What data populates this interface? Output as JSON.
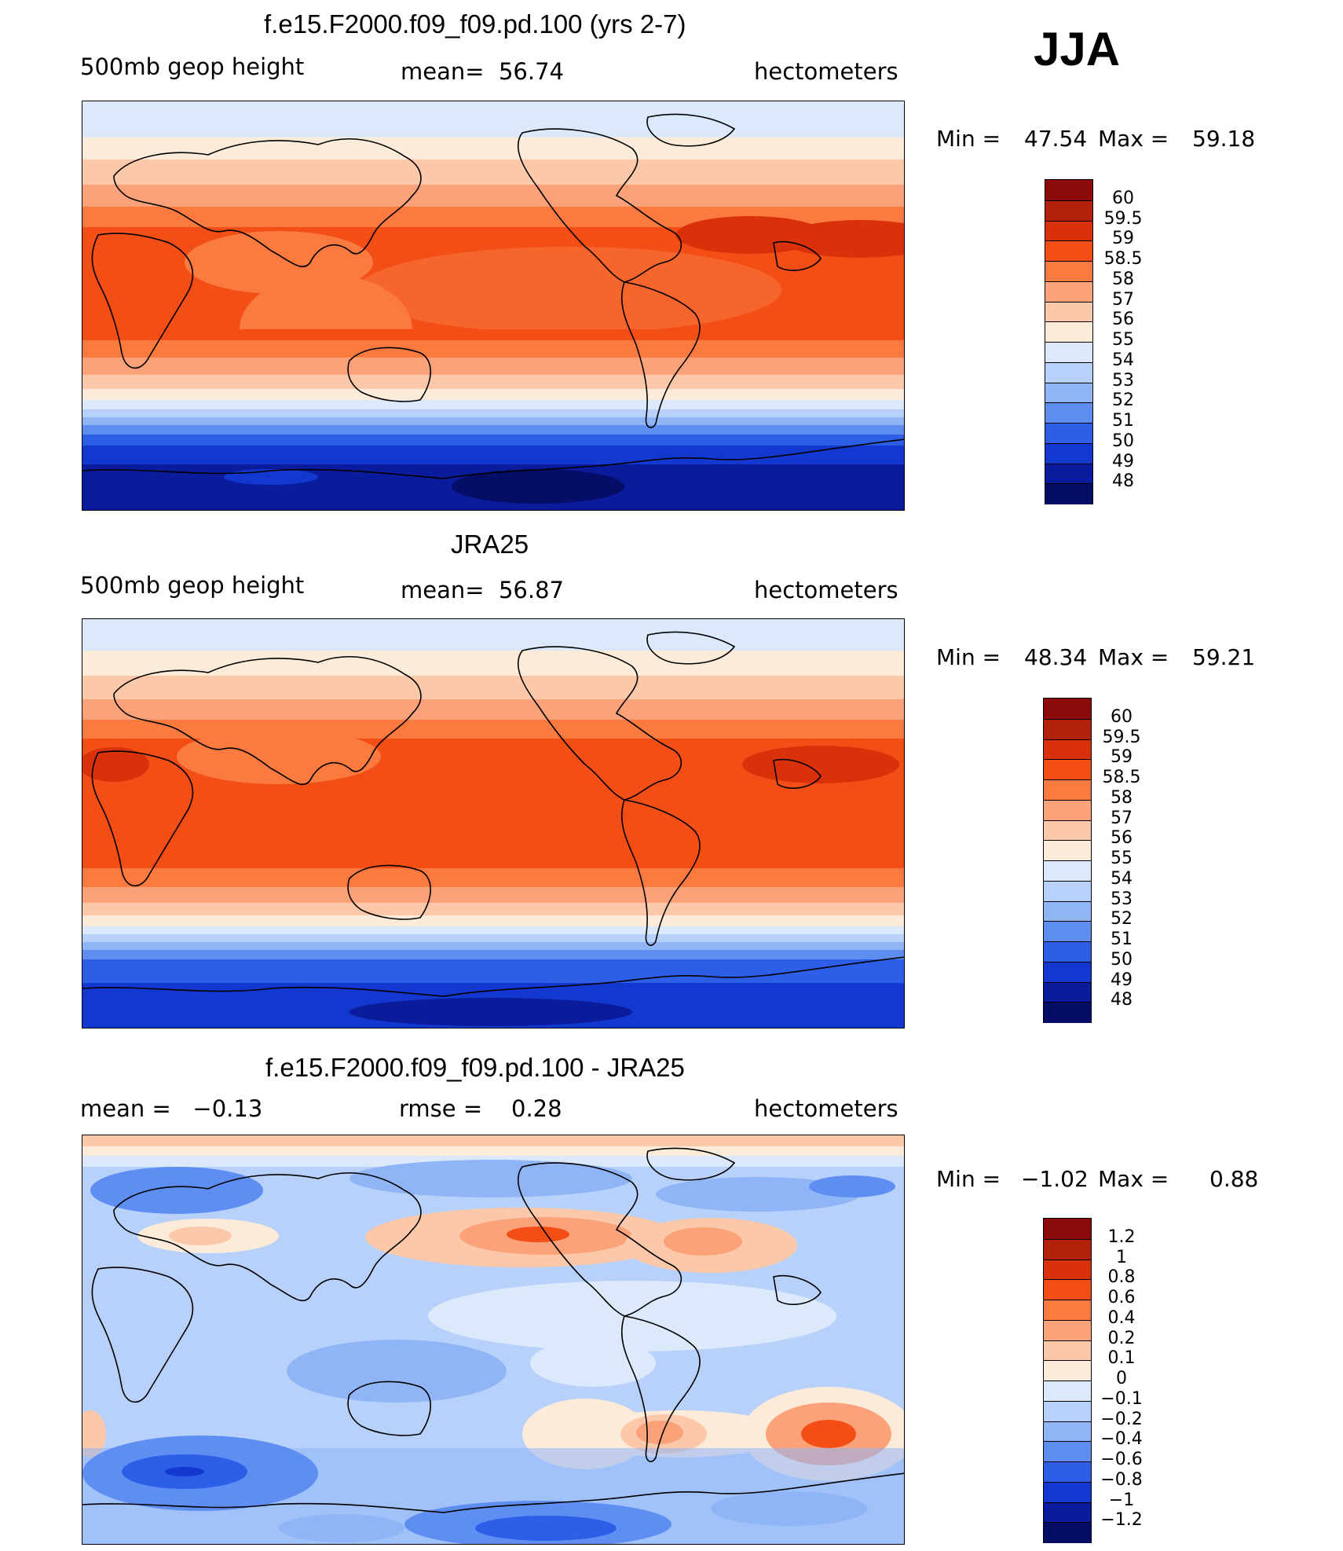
{
  "season": "JJA",
  "panels": [
    {
      "id": "model",
      "title": "f.e15.F2000.f09_f09.pd.100 (yrs 2-7)",
      "left_label": "500mb geop height",
      "center_label": "mean=  56.74",
      "units": "hectometers",
      "min_label": "Min =",
      "min_value": "47.54",
      "max_label": "Max =",
      "max_value": "59.18",
      "colorbar_levels": [
        "60",
        "59.5",
        "59",
        "58.5",
        "58",
        "57",
        "56",
        "55",
        "54",
        "53",
        "52",
        "51",
        "50",
        "49",
        "48"
      ],
      "colorbar_colors": [
        "#8b0a0a",
        "#b2220b",
        "#d9320b",
        "#f24e16",
        "#fa7a3f",
        "#fca27a",
        "#fcc8aa",
        "#fdebd9",
        "#dbe9fb",
        "#b7d1fa",
        "#8fb5f7",
        "#5f8ef2",
        "#2d5ee8",
        "#1238cf",
        "#0a1c9c",
        "#060d66"
      ]
    },
    {
      "id": "obs",
      "title": "JRA25",
      "left_label": "500mb geop height",
      "center_label": "mean=  56.87",
      "units": "hectometers",
      "min_label": "Min =",
      "min_value": "48.34",
      "max_label": "Max =",
      "max_value": "59.21",
      "colorbar_levels": [
        "60",
        "59.5",
        "59",
        "58.5",
        "58",
        "57",
        "56",
        "55",
        "54",
        "53",
        "52",
        "51",
        "50",
        "49",
        "48"
      ],
      "colorbar_colors": [
        "#8b0a0a",
        "#b2220b",
        "#d9320b",
        "#f24e16",
        "#fa7a3f",
        "#fca27a",
        "#fcc8aa",
        "#fdebd9",
        "#dbe9fb",
        "#b7d1fa",
        "#8fb5f7",
        "#5f8ef2",
        "#2d5ee8",
        "#1238cf",
        "#0a1c9c",
        "#060d66"
      ]
    },
    {
      "id": "diff",
      "title": "f.e15.F2000.f09_f09.pd.100 - JRA25",
      "left_label": "mean =   −0.13",
      "center_label": "rmse =    0.28",
      "units": "hectometers",
      "min_label": "Min =",
      "min_value": "−1.02",
      "max_label": "Max =",
      "max_value": "0.88",
      "colorbar_levels": [
        "1.2",
        "1",
        "0.8",
        "0.6",
        "0.4",
        "0.2",
        "0.1",
        "0",
        "−0.1",
        "−0.2",
        "−0.4",
        "−0.6",
        "−0.8",
        "−1",
        "−1.2"
      ],
      "colorbar_colors": [
        "#8b0a0a",
        "#b2220b",
        "#d9320b",
        "#f24e16",
        "#fa7a3f",
        "#fca27a",
        "#fcc8aa",
        "#fdebd9",
        "#dbe9fb",
        "#b7d1fa",
        "#8fb5f7",
        "#5f8ef2",
        "#2d5ee8",
        "#1238cf",
        "#0a1c9c",
        "#060d66"
      ]
    }
  ]
}
